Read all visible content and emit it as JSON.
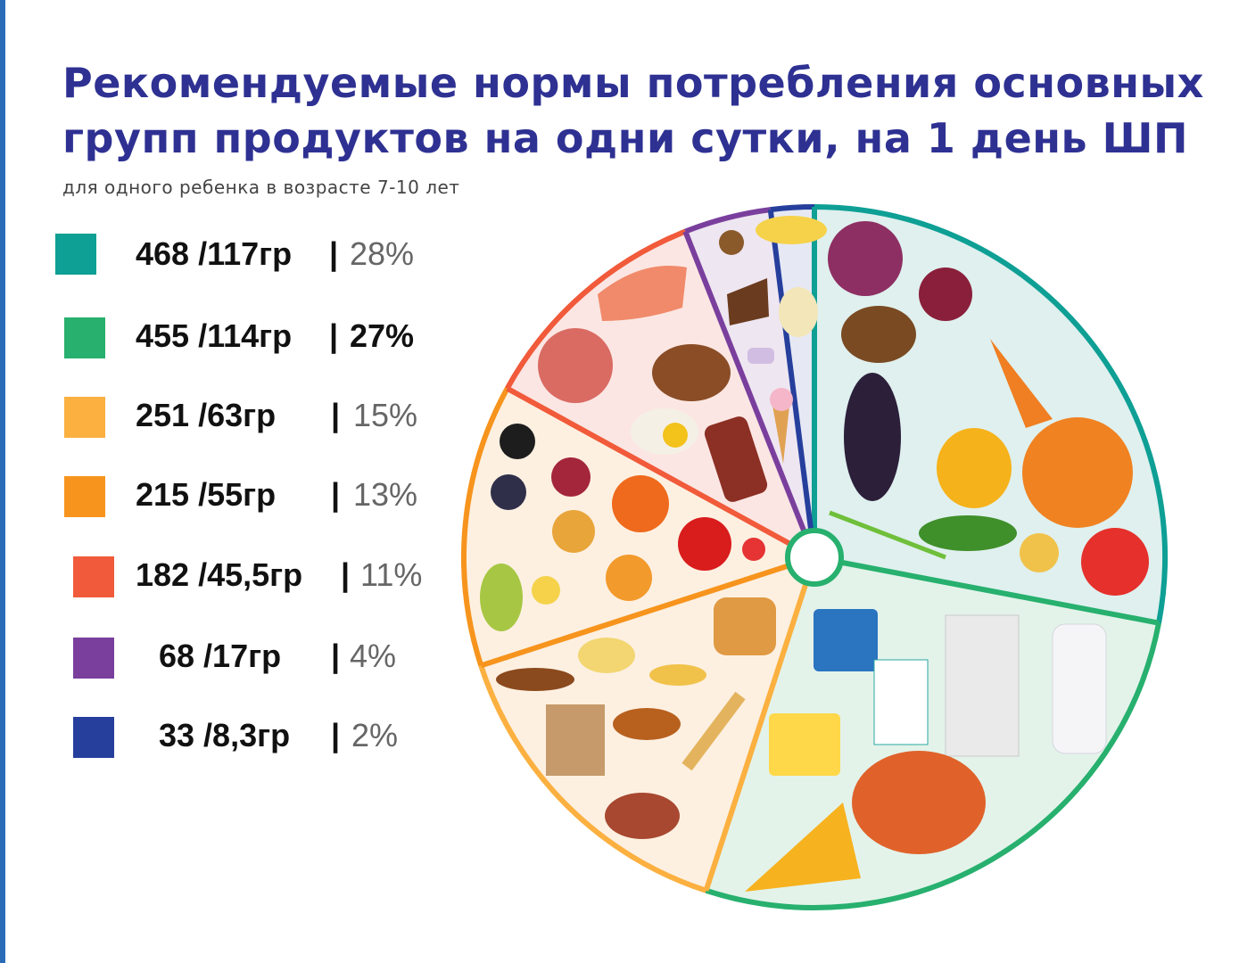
{
  "title": "Рекомендуемые нормы потребления основных групп продуктов на одни сутки, на 1 день ШП",
  "subtitle": "для одного ребенка в возрасте 7-10 лет",
  "legend": [
    {
      "value": "468 /117гр",
      "sep": "|",
      "pct": "28%",
      "color": "#0e9f95"
    },
    {
      "value": "455 /114гр",
      "sep": "|",
      "pct": "27%",
      "color": "#27b06e"
    },
    {
      "value": "251 /63гр",
      "sep": "|",
      "pct": "15%",
      "color": "#fbb040"
    },
    {
      "value": "215 /55гр",
      "sep": "|",
      "pct": "13%",
      "color": "#f7941d"
    },
    {
      "value": "182 /45,5гр",
      "sep": "|",
      "pct": "11%",
      "color": "#f15a3a"
    },
    {
      "value": "68 /17гр",
      "sep": "|",
      "pct": "4%",
      "color": "#7a3f9d"
    },
    {
      "value": "33 /8,3гр",
      "sep": "|",
      "pct": "2%",
      "color": "#263f9c"
    }
  ],
  "chart_data": {
    "type": "pie",
    "title": "Рекомендуемые нормы потребления основных групп продуктов на одни сутки, на 1 день ШП",
    "subtitle": "для одного ребенка в возрасте 7-10 лет",
    "categories": [
      "468 /117гр",
      "455 /114гр",
      "251 /63гр",
      "215 /55гр",
      "182 /45,5гр",
      "68 /17гр",
      "33 /8,3гр"
    ],
    "values": [
      28,
      27,
      15,
      13,
      11,
      4,
      2
    ],
    "colors": [
      "#0e9f95",
      "#27b06e",
      "#fbb040",
      "#f7941d",
      "#f15a3a",
      "#7a3f9d",
      "#263f9c"
    ],
    "fills": [
      "#dff0ee",
      "#e3f3ea",
      "#fdf0e1",
      "#fdf0e1",
      "#fbe6e3",
      "#eee6f1",
      "#e6e9f4"
    ],
    "legend_position": "left"
  }
}
